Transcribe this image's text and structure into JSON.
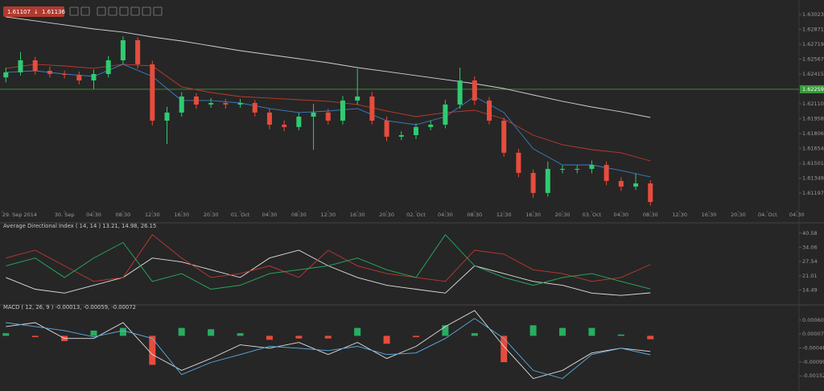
{
  "header": {
    "bid": "1.61107",
    "ask": "1.61136"
  },
  "chart_data": [
    {
      "type": "candlestick",
      "x": [
        16,
        18,
        20,
        22,
        24,
        26,
        28,
        30,
        32,
        34,
        36,
        38,
        40,
        42,
        44,
        46,
        48,
        50,
        52,
        54,
        56,
        58,
        60,
        62,
        64,
        66,
        68,
        70,
        72,
        74,
        76,
        78,
        80,
        82,
        84,
        86,
        88,
        90,
        92,
        94,
        96,
        98,
        100,
        102,
        104
      ],
      "open": [
        1.6238,
        1.62432,
        1.62555,
        1.62448,
        1.62415,
        1.62407,
        1.62349,
        1.62415,
        1.62555,
        1.6276,
        1.62514,
        1.61938,
        1.62021,
        1.62185,
        1.62103,
        1.62119,
        1.62103,
        1.62119,
        1.62021,
        1.61897,
        1.61873,
        1.61979,
        1.62021,
        1.61938,
        1.62144,
        1.62185,
        1.61938,
        1.61774,
        1.6179,
        1.61873,
        1.61897,
        1.62103,
        1.62349,
        1.62144,
        1.61938,
        1.6161,
        1.61404,
        1.61199,
        1.61445,
        1.61445,
        1.61445,
        1.61486,
        1.61322,
        1.61264,
        1.61297
      ],
      "high": [
        1.6248,
        1.6264,
        1.6259,
        1.6249,
        1.6245,
        1.6244,
        1.6246,
        1.626,
        1.628,
        1.6279,
        1.6255,
        1.6208,
        1.6223,
        1.6222,
        1.6217,
        1.6216,
        1.6216,
        1.6215,
        1.6206,
        1.6194,
        1.6202,
        1.6211,
        1.6206,
        1.6219,
        1.6247,
        1.6223,
        1.6198,
        1.6183,
        1.6191,
        1.6194,
        1.6215,
        1.6248,
        1.6239,
        1.6218,
        1.6197,
        1.6165,
        1.6144,
        1.6152,
        1.6148,
        1.6148,
        1.6153,
        1.6152,
        1.6136,
        1.614,
        1.6133
      ],
      "low": [
        1.6233,
        1.624,
        1.6241,
        1.6238,
        1.6237,
        1.6231,
        1.6226,
        1.6238,
        1.6251,
        1.6247,
        1.6189,
        1.617,
        1.6198,
        1.6206,
        1.6207,
        1.6206,
        1.6207,
        1.6198,
        1.6185,
        1.6183,
        1.6184,
        1.6164,
        1.619,
        1.619,
        1.621,
        1.619,
        1.6173,
        1.6174,
        1.6175,
        1.6184,
        1.6186,
        1.6206,
        1.621,
        1.619,
        1.6157,
        1.6136,
        1.6115,
        1.6116,
        1.614,
        1.614,
        1.614,
        1.6128,
        1.6122,
        1.6123,
        1.6107
      ],
      "close": [
        1.62432,
        1.62555,
        1.62448,
        1.62415,
        1.62407,
        1.62349,
        1.62415,
        1.62555,
        1.6276,
        1.62514,
        1.61938,
        1.62021,
        1.62185,
        1.62103,
        1.62119,
        1.62103,
        1.62119,
        1.62021,
        1.61897,
        1.61873,
        1.61979,
        1.62021,
        1.61938,
        1.62144,
        1.62185,
        1.61938,
        1.61774,
        1.6179,
        1.61873,
        1.61897,
        1.62103,
        1.62349,
        1.62144,
        1.61938,
        1.6161,
        1.61404,
        1.61199,
        1.61445,
        1.61445,
        1.61445,
        1.61486,
        1.61322,
        1.61264,
        1.61297,
        1.61107
      ],
      "up_color": "#2ecc71",
      "down_color": "#e74c3c",
      "overlay_x": [
        16,
        20,
        24,
        28,
        32,
        36,
        40,
        44,
        48,
        52,
        56,
        60,
        64,
        68,
        72,
        76,
        80,
        84,
        88,
        92,
        96,
        100,
        104
      ],
      "overlays": [
        {
          "color": "#d0d0d0",
          "values": [
            1.62999,
            1.62958,
            1.62917,
            1.62875,
            1.62843,
            1.62793,
            1.62752,
            1.62703,
            1.62653,
            1.62612,
            1.62571,
            1.6253,
            1.62481,
            1.6244,
            1.62399,
            1.62358,
            1.62316,
            1.62267,
            1.62201,
            1.62136,
            1.62078,
            1.62029,
            1.61971
          ]
        },
        {
          "color": "#c0392b",
          "values": [
            1.62473,
            1.62514,
            1.62497,
            1.62473,
            1.62514,
            1.62497,
            1.62284,
            1.62226,
            1.62185,
            1.62169,
            1.62152,
            1.62136,
            1.62103,
            1.62037,
            1.61979,
            1.62021,
            1.62045,
            1.61955,
            1.6179,
            1.61692,
            1.61642,
            1.6161,
            1.61527
          ]
        },
        {
          "color": "#3b7dc4",
          "values": [
            1.62432,
            1.62448,
            1.62415,
            1.6239,
            1.62514,
            1.6239,
            1.62144,
            1.62144,
            1.62119,
            1.62062,
            1.62021,
            1.62037,
            1.62062,
            1.61938,
            1.61897,
            1.61979,
            1.62185,
            1.62021,
            1.61651,
            1.61486,
            1.61486,
            1.61429,
            1.61363
          ]
        }
      ],
      "current_price": 1.62259,
      "current_color": "#3a9a3a",
      "ylim": [
        1.61017,
        1.63048
      ],
      "yticks": [
        1.63023,
        1.62871,
        1.62719,
        1.62567,
        1.62415,
        {
          "value": 1.6211,
          "label": "1.62110"
        },
        1.61958,
        1.61806,
        1.61654,
        1.61501,
        1.61349,
        1.61197
      ],
      "xlim": [
        15.2,
        124.3
      ],
      "xticks": [
        {
          "value": 15.5,
          "label": "29. Sep 2014"
        },
        {
          "value": 24,
          "label": "30. Sep"
        },
        {
          "value": 28,
          "label": "04:30"
        },
        {
          "value": 32,
          "label": "08:30"
        },
        {
          "value": 36,
          "label": "12:30"
        },
        {
          "value": 40,
          "label": "16:30"
        },
        {
          "value": 44,
          "label": "20:30"
        },
        {
          "value": 48,
          "label": "01. Oct"
        },
        {
          "value": 52,
          "label": "04:30"
        },
        {
          "value": 56,
          "label": "08:30"
        },
        {
          "value": 60,
          "label": "12:30"
        },
        {
          "value": 64,
          "label": "16:30"
        },
        {
          "value": 68,
          "label": "20:30"
        },
        {
          "value": 72,
          "label": "02. Oct"
        },
        {
          "value": 76,
          "label": "04:30"
        },
        {
          "value": 80,
          "label": "08:30"
        },
        {
          "value": 84,
          "label": "12:30"
        },
        {
          "value": 88,
          "label": "16:30"
        },
        {
          "value": 92,
          "label": "20:30"
        },
        {
          "value": 96,
          "label": "03. Oct"
        },
        {
          "value": 100,
          "label": "04:30"
        },
        {
          "value": 104,
          "label": "08:30"
        },
        {
          "value": 108,
          "label": "12:30"
        },
        {
          "value": 112,
          "label": "16:30"
        },
        {
          "value": 116,
          "label": "20:30"
        },
        {
          "value": 120,
          "label": "04. Oct"
        },
        {
          "value": 124,
          "label": "04:30"
        }
      ]
    },
    {
      "type": "line",
      "title": "Average Directional Index ( 14, 14 ) 13.21, 14.98, 26.15",
      "x": [
        16,
        20,
        24,
        28,
        32,
        36,
        40,
        44,
        48,
        52,
        56,
        60,
        64,
        68,
        72,
        76,
        80,
        84,
        88,
        92,
        96,
        100,
        104
      ],
      "series": [
        {
          "color": "#e0e0e0",
          "values": [
            20.23,
            14.88,
            13.09,
            16.66,
            20.23,
            29.16,
            27.37,
            23.8,
            20.23,
            29.16,
            32.73,
            25.59,
            20.23,
            16.66,
            14.88,
            13.09,
            25.59,
            22.02,
            18.45,
            16.66,
            13.09,
            12.02,
            13.21
          ]
        },
        {
          "color": "#c0392b",
          "values": [
            29.16,
            32.73,
            25.59,
            18.45,
            20.23,
            39.87,
            29.16,
            20.23,
            22.02,
            25.59,
            20.23,
            32.73,
            25.59,
            22.02,
            20.23,
            18.45,
            32.73,
            30.94,
            23.8,
            22.02,
            18.45,
            20.23,
            26.15
          ]
        },
        {
          "color": "#27ae60",
          "values": [
            25.59,
            29.16,
            20.23,
            29.16,
            36.3,
            18.45,
            22.02,
            14.88,
            16.66,
            22.02,
            23.8,
            25.59,
            29.16,
            23.8,
            20.23,
            39.87,
            25.59,
            20.23,
            16.66,
            20.23,
            22.02,
            18.45,
            14.98
          ]
        }
      ],
      "ylim": [
        8.78,
        43.44
      ],
      "yticks": [
        40.58,
        34.06,
        27.54,
        21.01,
        14.49
      ],
      "xlim": [
        15.2,
        124.3
      ]
    },
    {
      "type": "macd",
      "title": "MACD ( 12, 26, 9 ) -0.00013, -0.00059, -0.00072",
      "x": [
        16,
        20,
        24,
        28,
        32,
        36,
        40,
        44,
        48,
        52,
        56,
        60,
        64,
        68,
        72,
        76,
        80,
        84,
        88,
        92,
        96,
        100,
        104
      ],
      "histogram": [
        0.0001,
        -5e-05,
        -0.0002,
        0.0002,
        0.0003,
        -0.0011,
        0.0003,
        0.00025,
        0.0001,
        -0.00015,
        -0.0001,
        -0.0001,
        0.0003,
        -0.0003,
        -5e-05,
        0.0004,
        0.0001,
        -0.001,
        0.0004,
        0.0003,
        0.0003,
        5e-05,
        -0.00013
      ],
      "up_color": "#27ae60",
      "down_color": "#e74c3c",
      "series": [
        {
          "color": "#e0e0e0",
          "values": [
            0.00035,
            0.0005,
            -0.0001,
            -0.0001,
            0.0005,
            -0.00071,
            -0.00131,
            -0.00086,
            -0.00034,
            -0.00047,
            -0.00025,
            -0.00071,
            -0.00025,
            -0.00086,
            -0.0004,
            0.00035,
            0.00096,
            -0.0004,
            -0.00162,
            -0.00131,
            -0.00065,
            -0.00047,
            -0.00059
          ]
        },
        {
          "color": "#5dade2",
          "values": [
            0.0005,
            0.00035,
            0.0002,
            -4e-05,
            0.0002,
            -0.0001,
            -0.00147,
            -0.00101,
            -0.00071,
            -0.0004,
            -0.00047,
            -0.00056,
            -0.0004,
            -0.00071,
            -0.00065,
            -0.0001,
            0.00066,
            -0.0001,
            -0.00131,
            -0.00162,
            -0.00071,
            -0.00047,
            -0.00072
          ]
        }
      ],
      "ylim": [
        -0.00197,
        0.00105
      ],
      "yticks": [
        {
          "value": 0.0006,
          "label": "0.00060"
        },
        7e-05,
        -0.00046,
        -0.00099,
        -0.00152
      ],
      "xlim": [
        15.2,
        124.3
      ]
    }
  ]
}
